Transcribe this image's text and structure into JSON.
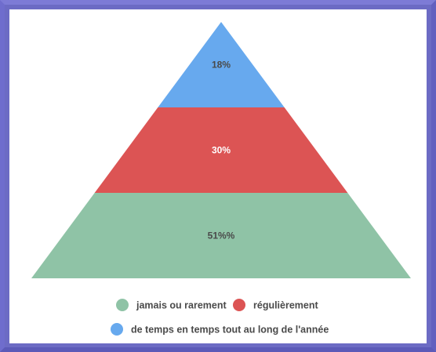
{
  "chart_data": {
    "type": "pyramid",
    "title": "",
    "segments": [
      {
        "name": "de temps en temps tout au long de l'année",
        "value": 18,
        "label": "18%",
        "color": "#67a9ee",
        "label_color": "#4a4a4a"
      },
      {
        "name": "régulièrement",
        "value": 30,
        "label": "30%",
        "color": "#dc5454",
        "label_color": "#ffffff"
      },
      {
        "name": "jamais ou rarement",
        "value": 51,
        "label": "51%%",
        "color": "#8fc3a6",
        "label_color": "#4a4a4a"
      }
    ],
    "legend": {
      "position": "bottom",
      "items": [
        {
          "label": "jamais ou rarement",
          "color": "#8fc3a6"
        },
        {
          "label": "régulièrement",
          "color": "#dc5454"
        },
        {
          "label": "de temps en temps tout au long de l'année",
          "color": "#67a9ee"
        }
      ]
    }
  }
}
